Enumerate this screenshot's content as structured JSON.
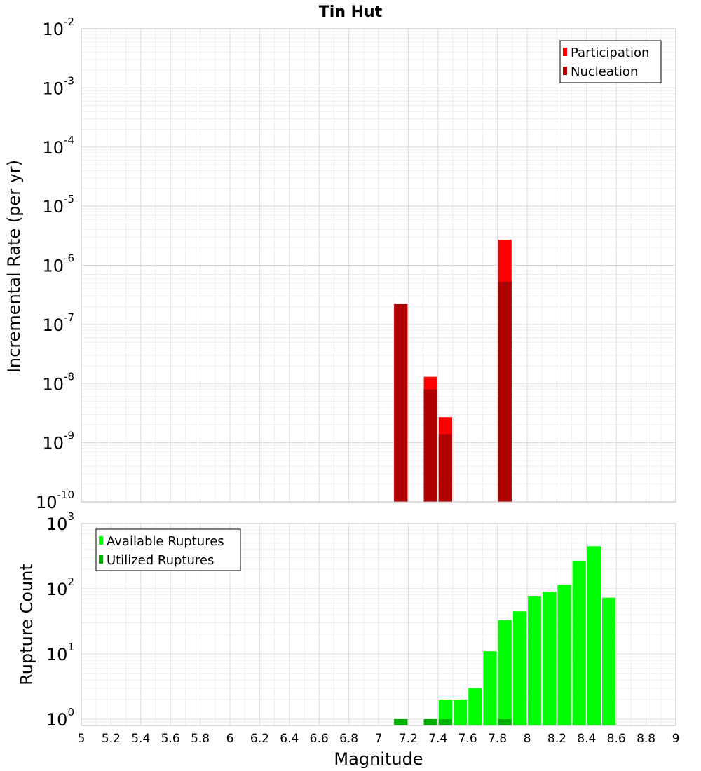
{
  "chart_data": [
    {
      "type": "bar",
      "title": "Tin Hut",
      "ylabel": "Incremental Rate (per yr)",
      "xlabel": "",
      "yscale": "log",
      "ylim": [
        1e-10,
        0.01
      ],
      "xlim": [
        5,
        9
      ],
      "bin_width": 0.1,
      "grid": true,
      "legend_position": "top-right",
      "ytick_labels": [
        {
          "base": "10",
          "exp": "-10"
        },
        {
          "base": "10",
          "exp": "-9"
        },
        {
          "base": "10",
          "exp": "-8"
        },
        {
          "base": "10",
          "exp": "-7"
        },
        {
          "base": "10",
          "exp": "-6"
        },
        {
          "base": "10",
          "exp": "-5"
        },
        {
          "base": "10",
          "exp": "-4"
        },
        {
          "base": "10",
          "exp": "-3"
        },
        {
          "base": "10",
          "exp": "-2"
        }
      ],
      "series": [
        {
          "name": "Participation",
          "color": "#ff0000",
          "points": [
            {
              "x": 7.15,
              "y": 2.2e-07
            },
            {
              "x": 7.35,
              "y": 1.3e-08
            },
            {
              "x": 7.45,
              "y": 2.7e-09
            },
            {
              "x": 7.85,
              "y": 2.7e-06
            }
          ]
        },
        {
          "name": "Nucleation",
          "color": "#b00000",
          "points": [
            {
              "x": 7.15,
              "y": 2.2e-07
            },
            {
              "x": 7.35,
              "y": 8e-09
            },
            {
              "x": 7.45,
              "y": 1.4e-09
            },
            {
              "x": 7.85,
              "y": 5.3e-07
            }
          ]
        }
      ]
    },
    {
      "type": "bar",
      "title": "",
      "ylabel": "Rupture Count",
      "xlabel": "Magnitude",
      "yscale": "log",
      "ylim": [
        0.8,
        1000
      ],
      "xlim": [
        5,
        9
      ],
      "bin_width": 0.1,
      "grid": true,
      "legend_position": "top-left",
      "ytick_labels": [
        {
          "base": "10",
          "exp": "0"
        },
        {
          "base": "10",
          "exp": "1"
        },
        {
          "base": "10",
          "exp": "2"
        },
        {
          "base": "10",
          "exp": "3"
        }
      ],
      "xtick_labels": [
        "5",
        "5.2",
        "5.4",
        "5.6",
        "5.8",
        "6",
        "6.2",
        "6.4",
        "6.6",
        "6.8",
        "7",
        "7.2",
        "7.4",
        "7.6",
        "7.8",
        "8",
        "8.2",
        "8.4",
        "8.6",
        "8.8",
        "9"
      ],
      "series": [
        {
          "name": "Available Ruptures",
          "color": "#00ff00",
          "points": [
            {
              "x": 7.15,
              "y": 1
            },
            {
              "x": 7.35,
              "y": 1
            },
            {
              "x": 7.45,
              "y": 2
            },
            {
              "x": 7.55,
              "y": 2
            },
            {
              "x": 7.65,
              "y": 3
            },
            {
              "x": 7.75,
              "y": 11
            },
            {
              "x": 7.85,
              "y": 33
            },
            {
              "x": 7.95,
              "y": 45
            },
            {
              "x": 8.05,
              "y": 76
            },
            {
              "x": 8.15,
              "y": 90
            },
            {
              "x": 8.25,
              "y": 115
            },
            {
              "x": 8.35,
              "y": 270
            },
            {
              "x": 8.45,
              "y": 450
            },
            {
              "x": 8.55,
              "y": 73
            }
          ]
        },
        {
          "name": "Utilized Ruptures",
          "color": "#00b000",
          "points": [
            {
              "x": 7.15,
              "y": 1
            },
            {
              "x": 7.35,
              "y": 1
            },
            {
              "x": 7.45,
              "y": 1
            },
            {
              "x": 7.85,
              "y": 1
            }
          ]
        }
      ]
    }
  ]
}
